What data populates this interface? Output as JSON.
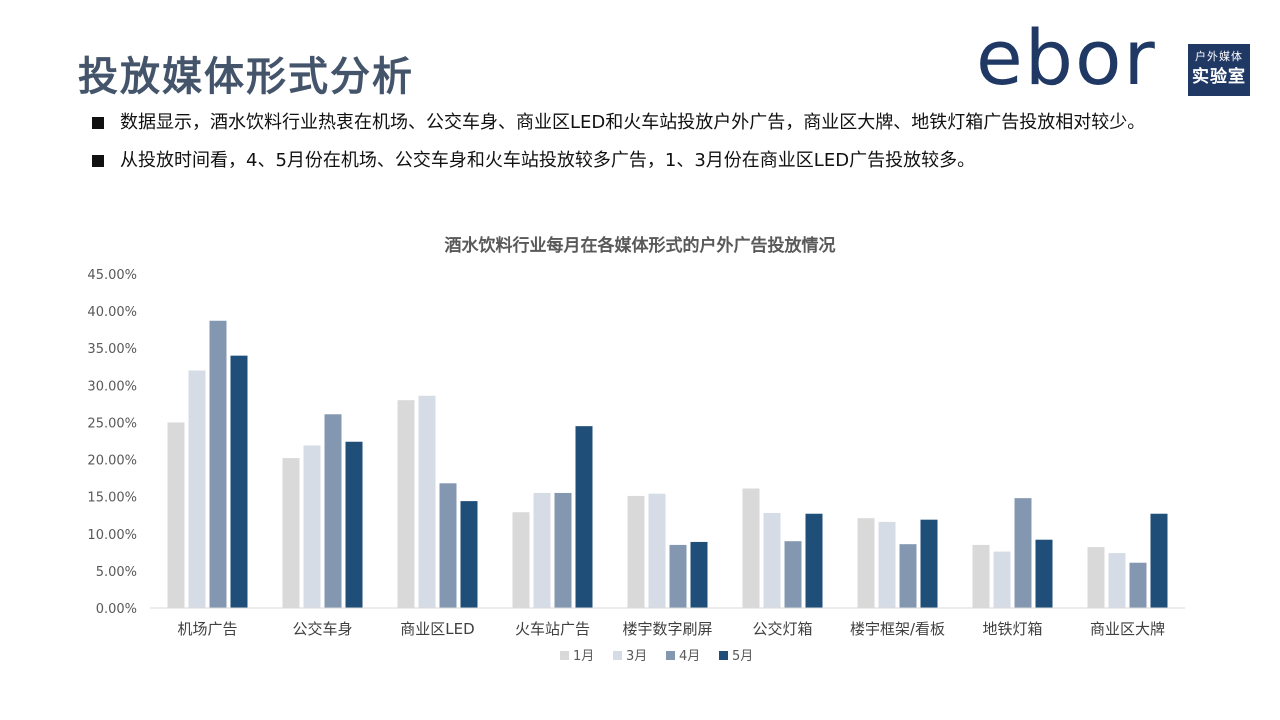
{
  "page_title": "投放媒体形式分析",
  "logo": {
    "word": "ebor",
    "box_top": "户外媒体",
    "box_bottom": "实验室"
  },
  "bullets": [
    "数据显示，酒水饮料行业热衷在机场、公交车身、商业区LED和火车站投放户外广告，商业区大牌、地铁灯箱广告投放相对较少。",
    "从投放时间看，4、5月份在机场、公交车身和火车站投放较多广告，1、3月份在商业区LED广告投放较多。"
  ],
  "chart_data": {
    "type": "bar",
    "title": "酒水饮料行业每月在各媒体形式的户外广告投放情况",
    "categories": [
      "机场广告",
      "公交车身",
      "商业区LED",
      "火车站广告",
      "楼宇数字刷屏",
      "公交灯箱",
      "楼宇框架/看板",
      "地铁灯箱",
      "商业区大牌"
    ],
    "series": [
      {
        "name": "1月",
        "color": "#d9d9d9",
        "values": [
          25.0,
          20.2,
          28.0,
          12.9,
          15.1,
          16.1,
          12.1,
          8.5,
          8.2
        ]
      },
      {
        "name": "3月",
        "color": "#d6dce5",
        "values": [
          32.0,
          21.9,
          28.6,
          15.5,
          15.4,
          12.8,
          11.6,
          7.6,
          7.4
        ]
      },
      {
        "name": "4月",
        "color": "#8497b0",
        "values": [
          38.7,
          26.1,
          16.8,
          15.5,
          8.5,
          9.0,
          8.6,
          14.8,
          6.1
        ]
      },
      {
        "name": "5月",
        "color": "#1f4e79",
        "values": [
          34.0,
          22.4,
          14.4,
          24.5,
          8.9,
          12.7,
          11.9,
          9.2,
          12.7
        ]
      }
    ],
    "ylim": [
      0,
      45
    ],
    "yticks": [
      "0.00%",
      "5.00%",
      "10.00%",
      "15.00%",
      "20.00%",
      "25.00%",
      "30.00%",
      "35.00%",
      "40.00%",
      "45.00%"
    ],
    "legend_position": "bottom",
    "grid": false
  }
}
